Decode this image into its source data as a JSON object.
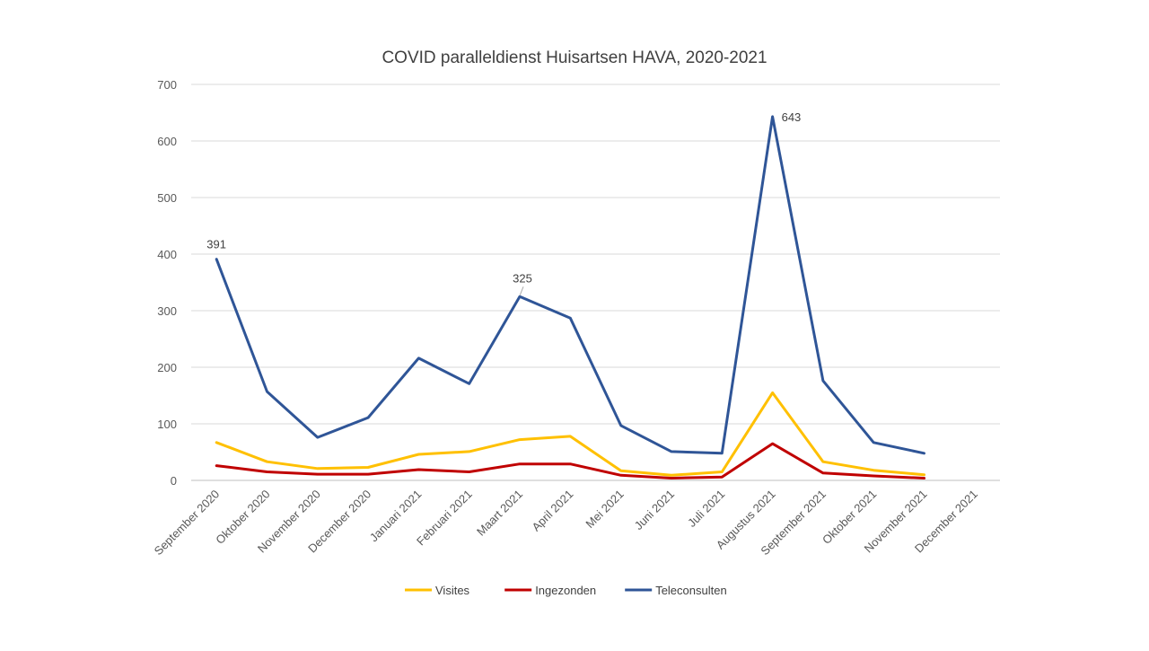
{
  "chart_data": {
    "type": "line",
    "title": "COVID paralleldienst  Huisartsen  HAVA, 2020-2021",
    "xlabel": "",
    "ylabel": "",
    "ylim": [
      0,
      700
    ],
    "yticks": [
      0,
      100,
      200,
      300,
      400,
      500,
      600,
      700
    ],
    "grid": true,
    "legend_position": "bottom",
    "categories": [
      "September 2020",
      "Oktober 2020",
      "November 2020",
      "December 2020",
      "Januari 2021",
      "Februari 2021",
      "Maart 2021",
      "April 2021",
      "Mei 2021",
      "Juni 2021",
      "Juli 2021",
      "Augustus 2021",
      "September 2021",
      "Oktober  2021",
      "November 2021",
      "December 2021"
    ],
    "series": [
      {
        "name": "Visites",
        "color": "#FFC000",
        "values": [
          67,
          33,
          21,
          23,
          46,
          51,
          72,
          78,
          17,
          9,
          15,
          155,
          33,
          18,
          10,
          null
        ]
      },
      {
        "name": "Ingezonden",
        "color": "#C00000",
        "values": [
          26,
          15,
          11,
          11,
          19,
          15,
          29,
          29,
          9,
          4,
          6,
          65,
          13,
          8,
          4,
          null
        ]
      },
      {
        "name": "Teleconsulten",
        "color": "#2F5597",
        "values": [
          391,
          157,
          76,
          111,
          216,
          171,
          325,
          287,
          97,
          51,
          48,
          643,
          176,
          67,
          48,
          null
        ]
      }
    ],
    "annotations": [
      {
        "series": "Teleconsulten",
        "category": "September 2020",
        "text": "391"
      },
      {
        "series": "Teleconsulten",
        "category": "Maart 2021",
        "text": "325"
      },
      {
        "series": "Teleconsulten",
        "category": "Augustus 2021",
        "text": "643"
      }
    ]
  }
}
